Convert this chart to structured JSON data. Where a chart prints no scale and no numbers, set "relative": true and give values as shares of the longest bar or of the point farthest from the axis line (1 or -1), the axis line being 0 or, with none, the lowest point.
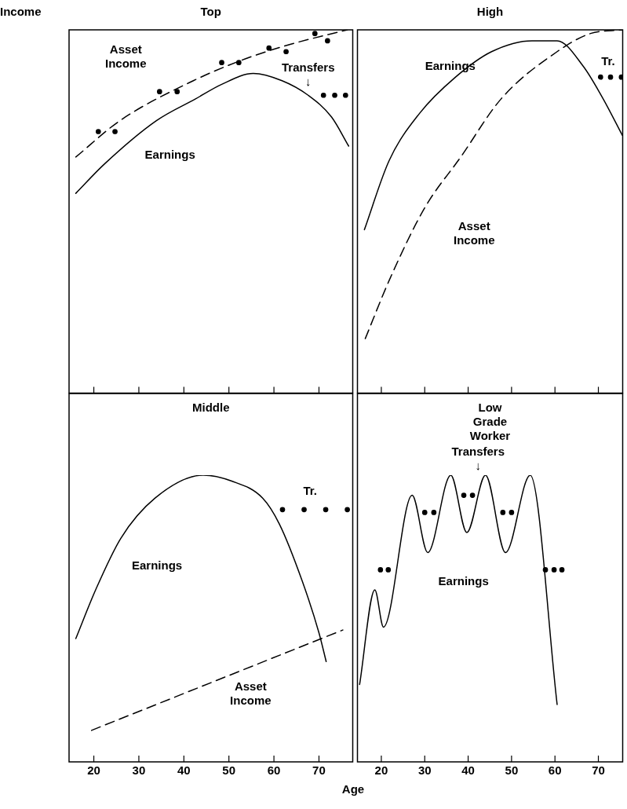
{
  "chart_data": [
    {
      "type": "line",
      "title": "Top",
      "ylabel": "Income",
      "relative": true,
      "xlim": [
        14.5,
        77.5
      ],
      "xticks": [
        20,
        30,
        40,
        50,
        60,
        70
      ],
      "tick_labels": false,
      "series": [
        {
          "type": "line",
          "color": "#000000",
          "marker": "none",
          "line_style": "solid",
          "x": [
            16,
            22.3,
            33.9,
            42.6,
            48.4,
            55.4,
            61.8,
            67.6,
            72.8,
            76.6
          ],
          "values": [
            0.55,
            0.63,
            0.75,
            0.81,
            0.85,
            0.88,
            0.86,
            0.82,
            0.76,
            0.68
          ]
        },
        {
          "type": "line",
          "color": "#000000",
          "marker": "none",
          "line_style": "dashed",
          "x": [
            16,
            25.8,
            42.1,
            53.6,
            63.6,
            76.3
          ],
          "values": [
            0.65,
            0.75,
            0.86,
            0.92,
            0.96,
            1
          ]
        },
        {
          "type": "scatter",
          "color": "#000000",
          "marker": "circle",
          "x": [
            21,
            24.7,
            34.6,
            38.5,
            48.4,
            52.2,
            58.9,
            62.7,
            69.1,
            71.9,
            71,
            73.5,
            75.9
          ],
          "values": [
            0.72,
            0.72,
            0.83,
            0.83,
            0.91,
            0.91,
            0.95,
            0.94,
            0.99,
            0.97,
            0.82,
            0.82,
            0.82
          ]
        }
      ],
      "annotations": [
        "Asset\nIncome",
        "Earnings",
        "Transfers\n↓"
      ]
    },
    {
      "type": "line",
      "title": "High",
      "relative": true,
      "xlim": [
        14.5,
        75.6
      ],
      "xticks": [
        20,
        30,
        40,
        50,
        60,
        70
      ],
      "tick_labels": false,
      "series": [
        {
          "type": "line",
          "color": "#000000",
          "marker": "none",
          "line_style": "solid",
          "x": [
            16.1,
            21.8,
            28.8,
            37.1,
            45.4,
            54.7,
            60.5,
            66.5,
            71.1,
            75.5
          ],
          "values": [
            0.45,
            0.64,
            0.77,
            0.87,
            0.94,
            0.97,
            0.97,
            0.9,
            0.81,
            0.71
          ]
        },
        {
          "type": "line",
          "color": "#000000",
          "marker": "none",
          "line_style": "dashed",
          "x": [
            16.3,
            21.8,
            30,
            38.3,
            47.6,
            60.5,
            68.2,
            75.5
          ],
          "values": [
            0.15,
            0.31,
            0.51,
            0.65,
            0.81,
            0.94,
            0.99,
            1
          ]
        },
        {
          "type": "scatter",
          "color": "#000000",
          "marker": "circle",
          "x": [
            70.5,
            72.8,
            75.3
          ],
          "values": [
            0.87,
            0.87,
            0.87
          ]
        }
      ],
      "annotations": [
        "Earnings",
        "Asset\nIncome",
        "Tr."
      ]
    },
    {
      "type": "line",
      "title": "Middle",
      "relative": true,
      "xlim": [
        14.5,
        77.5
      ],
      "xticks": [
        20,
        30,
        40,
        50,
        60,
        70
      ],
      "tick_labels": "x",
      "series": [
        {
          "type": "line",
          "color": "#000000",
          "marker": "none",
          "line_style": "solid",
          "x": [
            16,
            20.4,
            26,
            33.6,
            44.3,
            50.5,
            57.5,
            61.2,
            66.3,
            70,
            71.6
          ],
          "values": [
            0.43,
            0.6,
            0.78,
            0.92,
            1,
            0.98,
            0.92,
            0.83,
            0.63,
            0.45,
            0.35
          ]
        },
        {
          "type": "line",
          "color": "#000000",
          "marker": "none",
          "line_style": "dashed",
          "x": [
            19.5,
            75.3
          ],
          "values": [
            0.11,
            0.46
          ]
        },
        {
          "type": "scatter",
          "color": "#000000",
          "marker": "circle",
          "x": [
            61.9,
            66.7,
            71.5,
            76.3
          ],
          "values": [
            0.88,
            0.88,
            0.88,
            0.88
          ]
        }
      ],
      "annotations": [
        "Tr.",
        "Earnings",
        "Asset\nIncome"
      ]
    },
    {
      "type": "line",
      "title": "Low\nGrade\nWorker",
      "xlabel": "Age",
      "relative": true,
      "xlim": [
        14.5,
        75.6
      ],
      "xticks": [
        20,
        30,
        40,
        50,
        60,
        70
      ],
      "tick_labels": "x",
      "series": [
        {
          "type": "line",
          "color": "#000000",
          "marker": "none",
          "line_style": "solid",
          "x": [
            15,
            18.5,
            20.5,
            27.1,
            30.7,
            36,
            39.7,
            44,
            48.6,
            54.3,
            60.5
          ],
          "values": [
            0.27,
            0.6,
            0.47,
            0.93,
            0.73,
            1,
            0.8,
            1,
            0.73,
            1,
            0.2
          ]
        },
        {
          "type": "scatter",
          "color": "#000000",
          "marker": "circle",
          "x": [
            19.8,
            21.6,
            30,
            32.1,
            39,
            41,
            48,
            50,
            57.8,
            59.8,
            61.6
          ],
          "values": [
            0.67,
            0.67,
            0.87,
            0.87,
            0.93,
            0.93,
            0.87,
            0.87,
            0.67,
            0.67,
            0.67
          ]
        }
      ],
      "annotations": [
        "Transfers\n↓",
        "Earnings"
      ]
    }
  ]
}
